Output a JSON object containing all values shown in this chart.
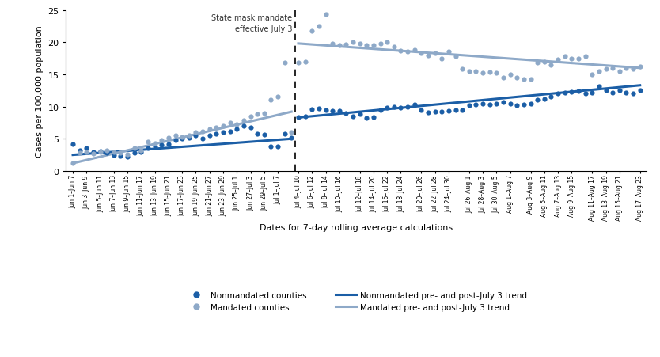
{
  "title_annotation": "State mask mandate\neffective July 3",
  "xlabel": "Dates for 7-day rolling average calculations",
  "ylabel": "Cases per 100,000 population",
  "ylim": [
    0,
    25
  ],
  "yticks": [
    0,
    5,
    10,
    15,
    20,
    25
  ],
  "nonmandated_color": "#1b5ea6",
  "mandated_color": "#8ea9c8",
  "vline_color": "#333333",
  "nonmandated_pre": [
    4.2,
    3.2,
    3.5,
    3.0,
    3.1,
    2.8,
    2.5,
    2.3,
    2.2,
    2.8,
    2.9,
    3.5,
    3.8,
    4.0,
    4.2,
    4.8,
    5.0,
    5.2,
    5.5,
    5.0,
    5.5,
    5.8,
    6.0,
    6.2,
    6.5,
    7.0,
    6.8,
    5.8,
    5.7,
    3.8,
    3.8,
    5.8,
    5.2
  ],
  "nonmandated_post": [
    8.3,
    8.5,
    9.6,
    9.7,
    9.4,
    9.3,
    9.3,
    9.0,
    8.5,
    8.8,
    8.2,
    8.3,
    9.5,
    9.8,
    9.9,
    9.8,
    10.0,
    10.3,
    9.5,
    9.1,
    9.2,
    9.2,
    9.3,
    9.5,
    9.5,
    10.2,
    10.3,
    10.5,
    10.3,
    10.5,
    10.7,
    10.5,
    10.2,
    10.3,
    10.5,
    11.0,
    11.2,
    11.5,
    12.0,
    12.2,
    12.3,
    12.4,
    12.0,
    12.2,
    13.1,
    12.5,
    12.2,
    12.5,
    12.2,
    12.1,
    12.5
  ],
  "mandated_pre": [
    1.2,
    2.8,
    3.0,
    2.7,
    2.9,
    3.2,
    3.0,
    2.8,
    2.6,
    3.5,
    3.2,
    4.5,
    4.3,
    4.8,
    5.2,
    5.5,
    5.3,
    5.5,
    6.0,
    6.2,
    6.5,
    6.8,
    7.0,
    7.5,
    7.2,
    7.8,
    8.5,
    8.8,
    9.0,
    11.0,
    11.5,
    16.8,
    6.0
  ],
  "mandated_post": [
    16.8,
    17.0,
    21.8,
    22.5,
    24.3,
    19.8,
    19.5,
    19.7,
    20.0,
    19.8,
    19.5,
    19.5,
    19.8,
    20.0,
    19.3,
    18.7,
    18.5,
    18.8,
    18.3,
    17.9,
    18.3,
    17.5,
    18.5,
    17.8,
    15.8,
    15.5,
    15.5,
    15.2,
    15.3,
    15.2,
    14.5,
    15.0,
    14.5,
    14.2,
    14.3,
    16.8,
    17.0,
    16.5,
    17.3,
    17.8,
    17.5,
    17.5,
    17.8,
    15.0,
    15.5,
    15.8,
    16.0,
    15.5,
    16.0,
    15.8,
    16.2
  ],
  "nonmandated_pre_trend": [
    2.5,
    5.0
  ],
  "nonmandated_post_trend": [
    8.3,
    13.3
  ],
  "mandated_pre_trend": [
    1.2,
    9.2
  ],
  "mandated_post_trend": [
    19.8,
    16.0
  ],
  "xtick_labels_pre": [
    "Jun 1–Jun 7",
    "Jun 3–Jun 9",
    "Jun 5–Jun 11",
    "Jun 7–Jun 13",
    "Jun 9–Jun 15",
    "Jun 11–Jun 17",
    "Jun 13–Jun 19",
    "Jun 15–Jun 21",
    "Jun 17–Jun 23",
    "Jun 19–Jun 25",
    "Jun 21–Jun 27",
    "Jun 23–Jun 29",
    "Jun 25–Jul 1",
    "Jun 27–Jul 3",
    "Jun 29–Jul 5",
    "Jul 1–Jul 7"
  ],
  "xtick_labels_post": [
    "Jul 4–Jul 10",
    "Jul 6–Jul 12",
    "Jul 8–Jul 14",
    "Jul 10–Jul 16",
    "Jul 12–Jul 18",
    "Jul 14–Jul 20",
    "Jul 16–Jul 22",
    "Jul 18–Jul 24",
    "Jul 20–Jul 26",
    "Jul 22–Jul 28",
    "Jul 24–Jul 30",
    "Jul 26–Aug 1",
    "Jul 28–Aug 3",
    "Jul 30–Aug 5",
    "Aug 1–Aug 7",
    "Aug 3–Aug 9",
    "Aug 5–Aug 11",
    "Aug 7–Aug 13",
    "Aug 9–Aug 15",
    "Aug 11–Aug 17",
    "Aug 13–Aug 19",
    "Aug 15–Aug 21",
    "Aug 17–Aug 23"
  ],
  "background_color": "#ffffff",
  "legend_nonmandated_dot": "Nonmandated counties",
  "legend_mandated_dot": "Mandated counties",
  "legend_nonmandated_line": "Nonmandated pre- and post-July 3 trend",
  "legend_mandated_line": "Mandated pre- and post-July 3 trend"
}
